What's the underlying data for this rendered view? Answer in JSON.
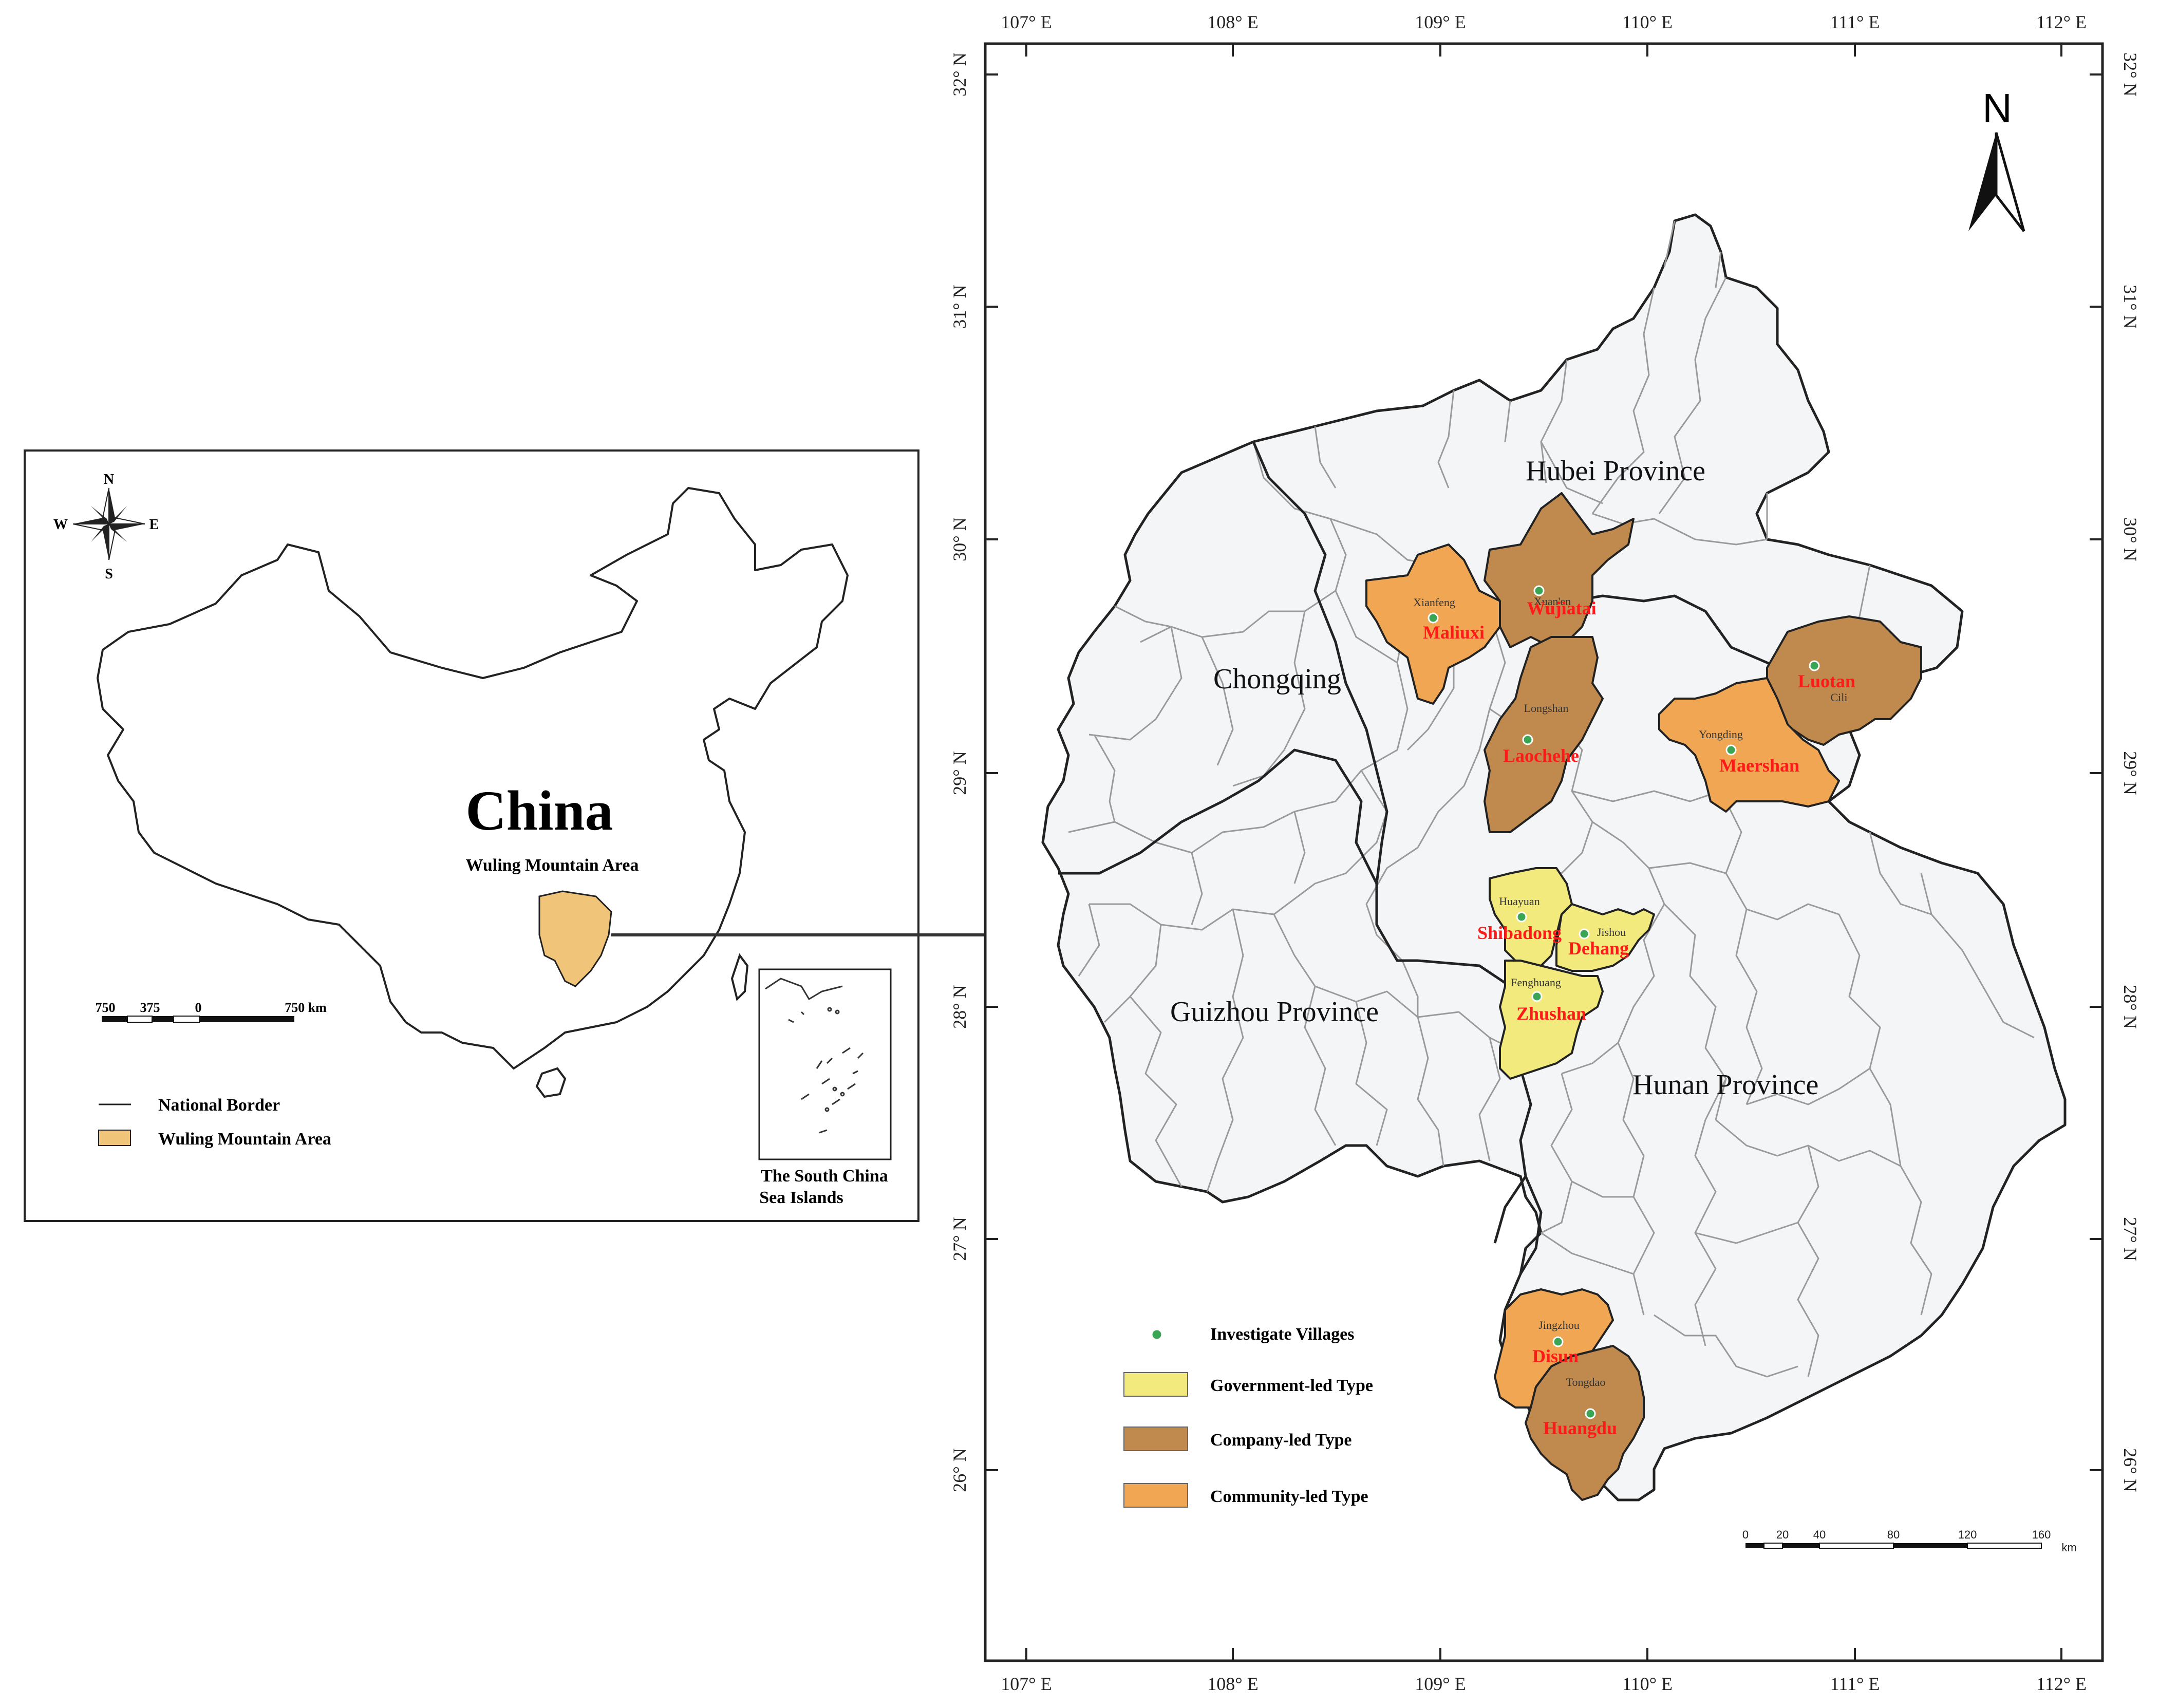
{
  "inset": {
    "title": "China",
    "subtitle": "Wuling Mountain Area",
    "compass": {
      "n": "N",
      "s": "S",
      "e": "E",
      "w": "W"
    },
    "scale_labels": [
      "750",
      "375",
      "0",
      "750 km"
    ],
    "legend": [
      {
        "label": "National Border",
        "symbol": "line"
      },
      {
        "label": "Wuling Mountain Area",
        "symbol": "fill",
        "color": "#f0c57a"
      }
    ],
    "sea_islands_caption": [
      "The South China",
      "Sea Islands"
    ]
  },
  "main_map": {
    "north_label": "N",
    "lon_ticks": [
      "107° E",
      "108° E",
      "109° E",
      "110° E",
      "111° E",
      "112° E"
    ],
    "lat_ticks": [
      "32° N",
      "31° N",
      "30° N",
      "29° N",
      "28° N",
      "27° N",
      "26° N"
    ],
    "regions": [
      "Hubei Province",
      "Chongqing",
      "Guizhou Province",
      "Hunan Province"
    ],
    "counties": [
      "Xianfeng",
      "Xuan'en",
      "Longshan",
      "Yongding",
      "Cili",
      "Huayuan",
      "Jishou",
      "Fenghuang",
      "Jingzhou",
      "Tongdao"
    ],
    "villages": [
      {
        "name": "Maliuxi",
        "type": "community"
      },
      {
        "name": "Wujiatai",
        "type": "company"
      },
      {
        "name": "Laochehe",
        "type": "company"
      },
      {
        "name": "Luotan",
        "type": "company"
      },
      {
        "name": "Maershan",
        "type": "community"
      },
      {
        "name": "Shibadong",
        "type": "government"
      },
      {
        "name": "Dehang",
        "type": "government"
      },
      {
        "name": "Zhushan",
        "type": "government"
      },
      {
        "name": "Disun",
        "type": "community"
      },
      {
        "name": "Huangdu",
        "type": "company"
      }
    ],
    "legend": [
      {
        "label": "Investigate Villages",
        "symbol": "point",
        "color": "#3aa655"
      },
      {
        "label": "Government-led Type",
        "symbol": "fill",
        "color": "#f2ea7c"
      },
      {
        "label": "Company-led Type",
        "symbol": "fill",
        "color": "#c08a4e"
      },
      {
        "label": "Community-led Type",
        "symbol": "fill",
        "color": "#f0a652"
      }
    ],
    "scale_labels": [
      "0",
      "20",
      "40",
      "80",
      "120",
      "160"
    ],
    "scale_unit": "km"
  },
  "colors": {
    "base_fill": "#f4f5f7",
    "government": "#f2ea7c",
    "company": "#c08a4e",
    "community": "#f0a652",
    "village_label": "#ff1a1a",
    "point": "#3aa655"
  }
}
